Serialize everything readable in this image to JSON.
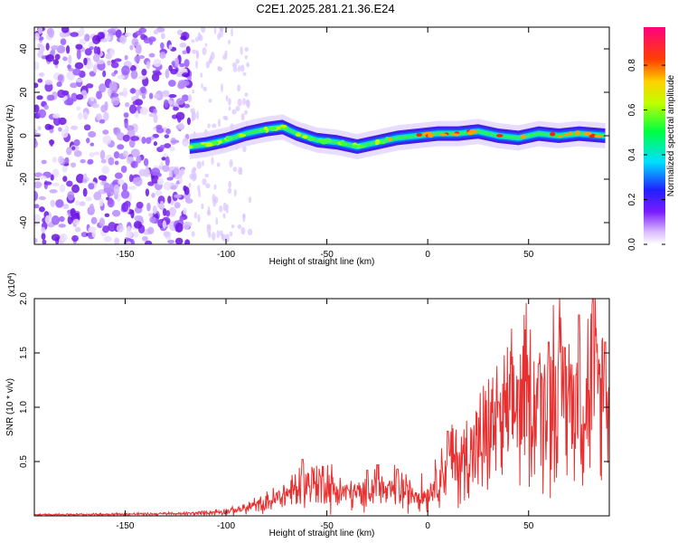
{
  "title": "C2E1.2025.281.21.36.E24",
  "chart_data": [
    {
      "type": "heatmap",
      "xlabel": "Height of straight line (km)",
      "ylabel": "Frequency (Hz)",
      "xlim": [
        -195,
        90
      ],
      "ylim": [
        -50,
        50
      ],
      "xticks": [
        -150,
        -100,
        -50,
        0,
        50
      ],
      "yticks": [
        -40,
        -20,
        0,
        20,
        40
      ],
      "colorbar": {
        "label": "Normalized spectral amplitude",
        "range": [
          0,
          0.97
        ],
        "ticks": [
          0.0,
          0.2,
          0.4,
          0.6,
          0.8
        ],
        "tick_labels": [
          "0.0",
          "0.2",
          "0.4",
          "0.6",
          "0.8"
        ]
      },
      "ridge": [
        {
          "x": -118,
          "y": -5
        },
        {
          "x": -110,
          "y": -4
        },
        {
          "x": -100,
          "y": -2
        },
        {
          "x": -90,
          "y": 1
        },
        {
          "x": -80,
          "y": 3
        },
        {
          "x": -72,
          "y": 4
        },
        {
          "x": -65,
          "y": 1
        },
        {
          "x": -55,
          "y": -2
        },
        {
          "x": -45,
          "y": -3
        },
        {
          "x": -35,
          "y": -5
        },
        {
          "x": -25,
          "y": -3
        },
        {
          "x": -15,
          "y": -1
        },
        {
          "x": -5,
          "y": 0
        },
        {
          "x": 5,
          "y": 1
        },
        {
          "x": 15,
          "y": 1
        },
        {
          "x": 25,
          "y": 2
        },
        {
          "x": 35,
          "y": 0
        },
        {
          "x": 45,
          "y": -1
        },
        {
          "x": 55,
          "y": 1
        },
        {
          "x": 65,
          "y": 0
        },
        {
          "x": 75,
          "y": 1
        },
        {
          "x": 88,
          "y": 0
        }
      ],
      "noise_region_x": [
        -195,
        -118
      ]
    },
    {
      "type": "line",
      "xlabel": "Height of straight line (km)",
      "ylabel": "SNR (10 * v/v)",
      "multiplier_label": "(x10",
      "multiplier_exp": "4",
      "multiplier_close": ")",
      "xlim": [
        -195,
        90
      ],
      "ylim": [
        0,
        2.0
      ],
      "xticks": [
        -150,
        -100,
        -50,
        0,
        50
      ],
      "yticks": [
        0.5,
        1.0,
        1.5,
        2.0
      ],
      "ytick_labels": [
        "0.5",
        "1.0",
        "1.5",
        "2.0"
      ],
      "color": "#e83030",
      "series": [
        {
          "x": [
            -195,
            -120,
            -100,
            -90,
            -80,
            -70,
            -60,
            -55,
            -50,
            -45,
            -40,
            -30,
            -25,
            -20,
            -15,
            -10,
            -5,
            0,
            5,
            10,
            15,
            20,
            25,
            30,
            35,
            40,
            45,
            50,
            55,
            60,
            65,
            70,
            75,
            80,
            85,
            90
          ],
          "values": [
            0.01,
            0.02,
            0.04,
            0.07,
            0.12,
            0.2,
            0.28,
            0.32,
            0.3,
            0.22,
            0.22,
            0.18,
            0.3,
            0.2,
            0.27,
            0.22,
            0.2,
            0.2,
            0.35,
            0.5,
            0.5,
            0.55,
            0.6,
            0.75,
            0.8,
            0.9,
            1.0,
            1.05,
            1.0,
            1.1,
            1.15,
            1.1,
            1.05,
            1.1,
            1.2,
            1.0
          ],
          "peaks": [
            {
              "x": -62,
              "y": 0.52
            },
            {
              "x": -30,
              "y": 0.42
            },
            {
              "x": -25,
              "y": 0.47
            },
            {
              "x": -15,
              "y": 0.43
            },
            {
              "x": 10,
              "y": 0.78
            },
            {
              "x": 35,
              "y": 1.05
            },
            {
              "x": 45,
              "y": 1.25
            },
            {
              "x": 55,
              "y": 1.4
            },
            {
              "x": 60,
              "y": 1.6
            },
            {
              "x": 68,
              "y": 1.55
            },
            {
              "x": 75,
              "y": 1.85
            },
            {
              "x": 82,
              "y": 2.0
            },
            {
              "x": 88,
              "y": 1.6
            }
          ]
        }
      ]
    }
  ]
}
